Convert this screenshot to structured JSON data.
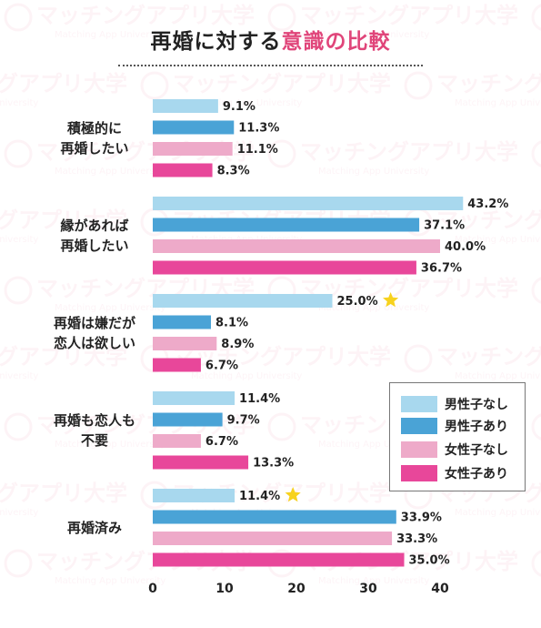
{
  "title": {
    "part1": "再婚に対する",
    "part2": "意識の比較"
  },
  "watermark": {
    "text": "マッチングアプリ大学",
    "sub": "Matching App University"
  },
  "chart_data": {
    "type": "bar",
    "orientation": "horizontal",
    "categories": [
      [
        "積極的に",
        "再婚したい"
      ],
      [
        "縁があれば",
        "再婚したい"
      ],
      [
        "再婚は嫌だが",
        "恋人は欲しい"
      ],
      [
        "再婚も恋人も",
        "不要"
      ],
      [
        "再婚済み"
      ]
    ],
    "series": [
      {
        "name": "男性子なし",
        "color": "#a8d8ee",
        "values": [
          9.1,
          43.2,
          25.0,
          11.4,
          11.4
        ]
      },
      {
        "name": "男性子あり",
        "color": "#4aa3d6",
        "values": [
          11.3,
          37.1,
          8.1,
          9.7,
          33.9
        ]
      },
      {
        "name": "女性子なし",
        "color": "#eeaac9",
        "values": [
          11.1,
          40.0,
          8.9,
          6.7,
          33.3
        ]
      },
      {
        "name": "女性子あり",
        "color": "#e8479a",
        "values": [
          8.3,
          36.7,
          6.7,
          13.3,
          35.0
        ]
      }
    ],
    "value_labels": [
      [
        "9.1%",
        "43.2%",
        "25.0%",
        "11.4%",
        "11.4%"
      ],
      [
        "11.3%",
        "37.1%",
        "8.1%",
        "9.7%",
        "33.9%"
      ],
      [
        "11.1%",
        "40.0%",
        "8.9%",
        "6.7%",
        "33.3%"
      ],
      [
        "8.3%",
        "36.7%",
        "6.7%",
        "13.3%",
        "35.0%"
      ]
    ],
    "x_ticks": [
      0,
      10,
      20,
      30,
      40
    ],
    "xlim": [
      0,
      45
    ],
    "highlight_stars": [
      {
        "series": 0,
        "category": 2
      },
      {
        "series": 0,
        "category": 4
      }
    ],
    "star_color": "#f7d21e",
    "legend_position": "bottom-right",
    "grid": false
  }
}
